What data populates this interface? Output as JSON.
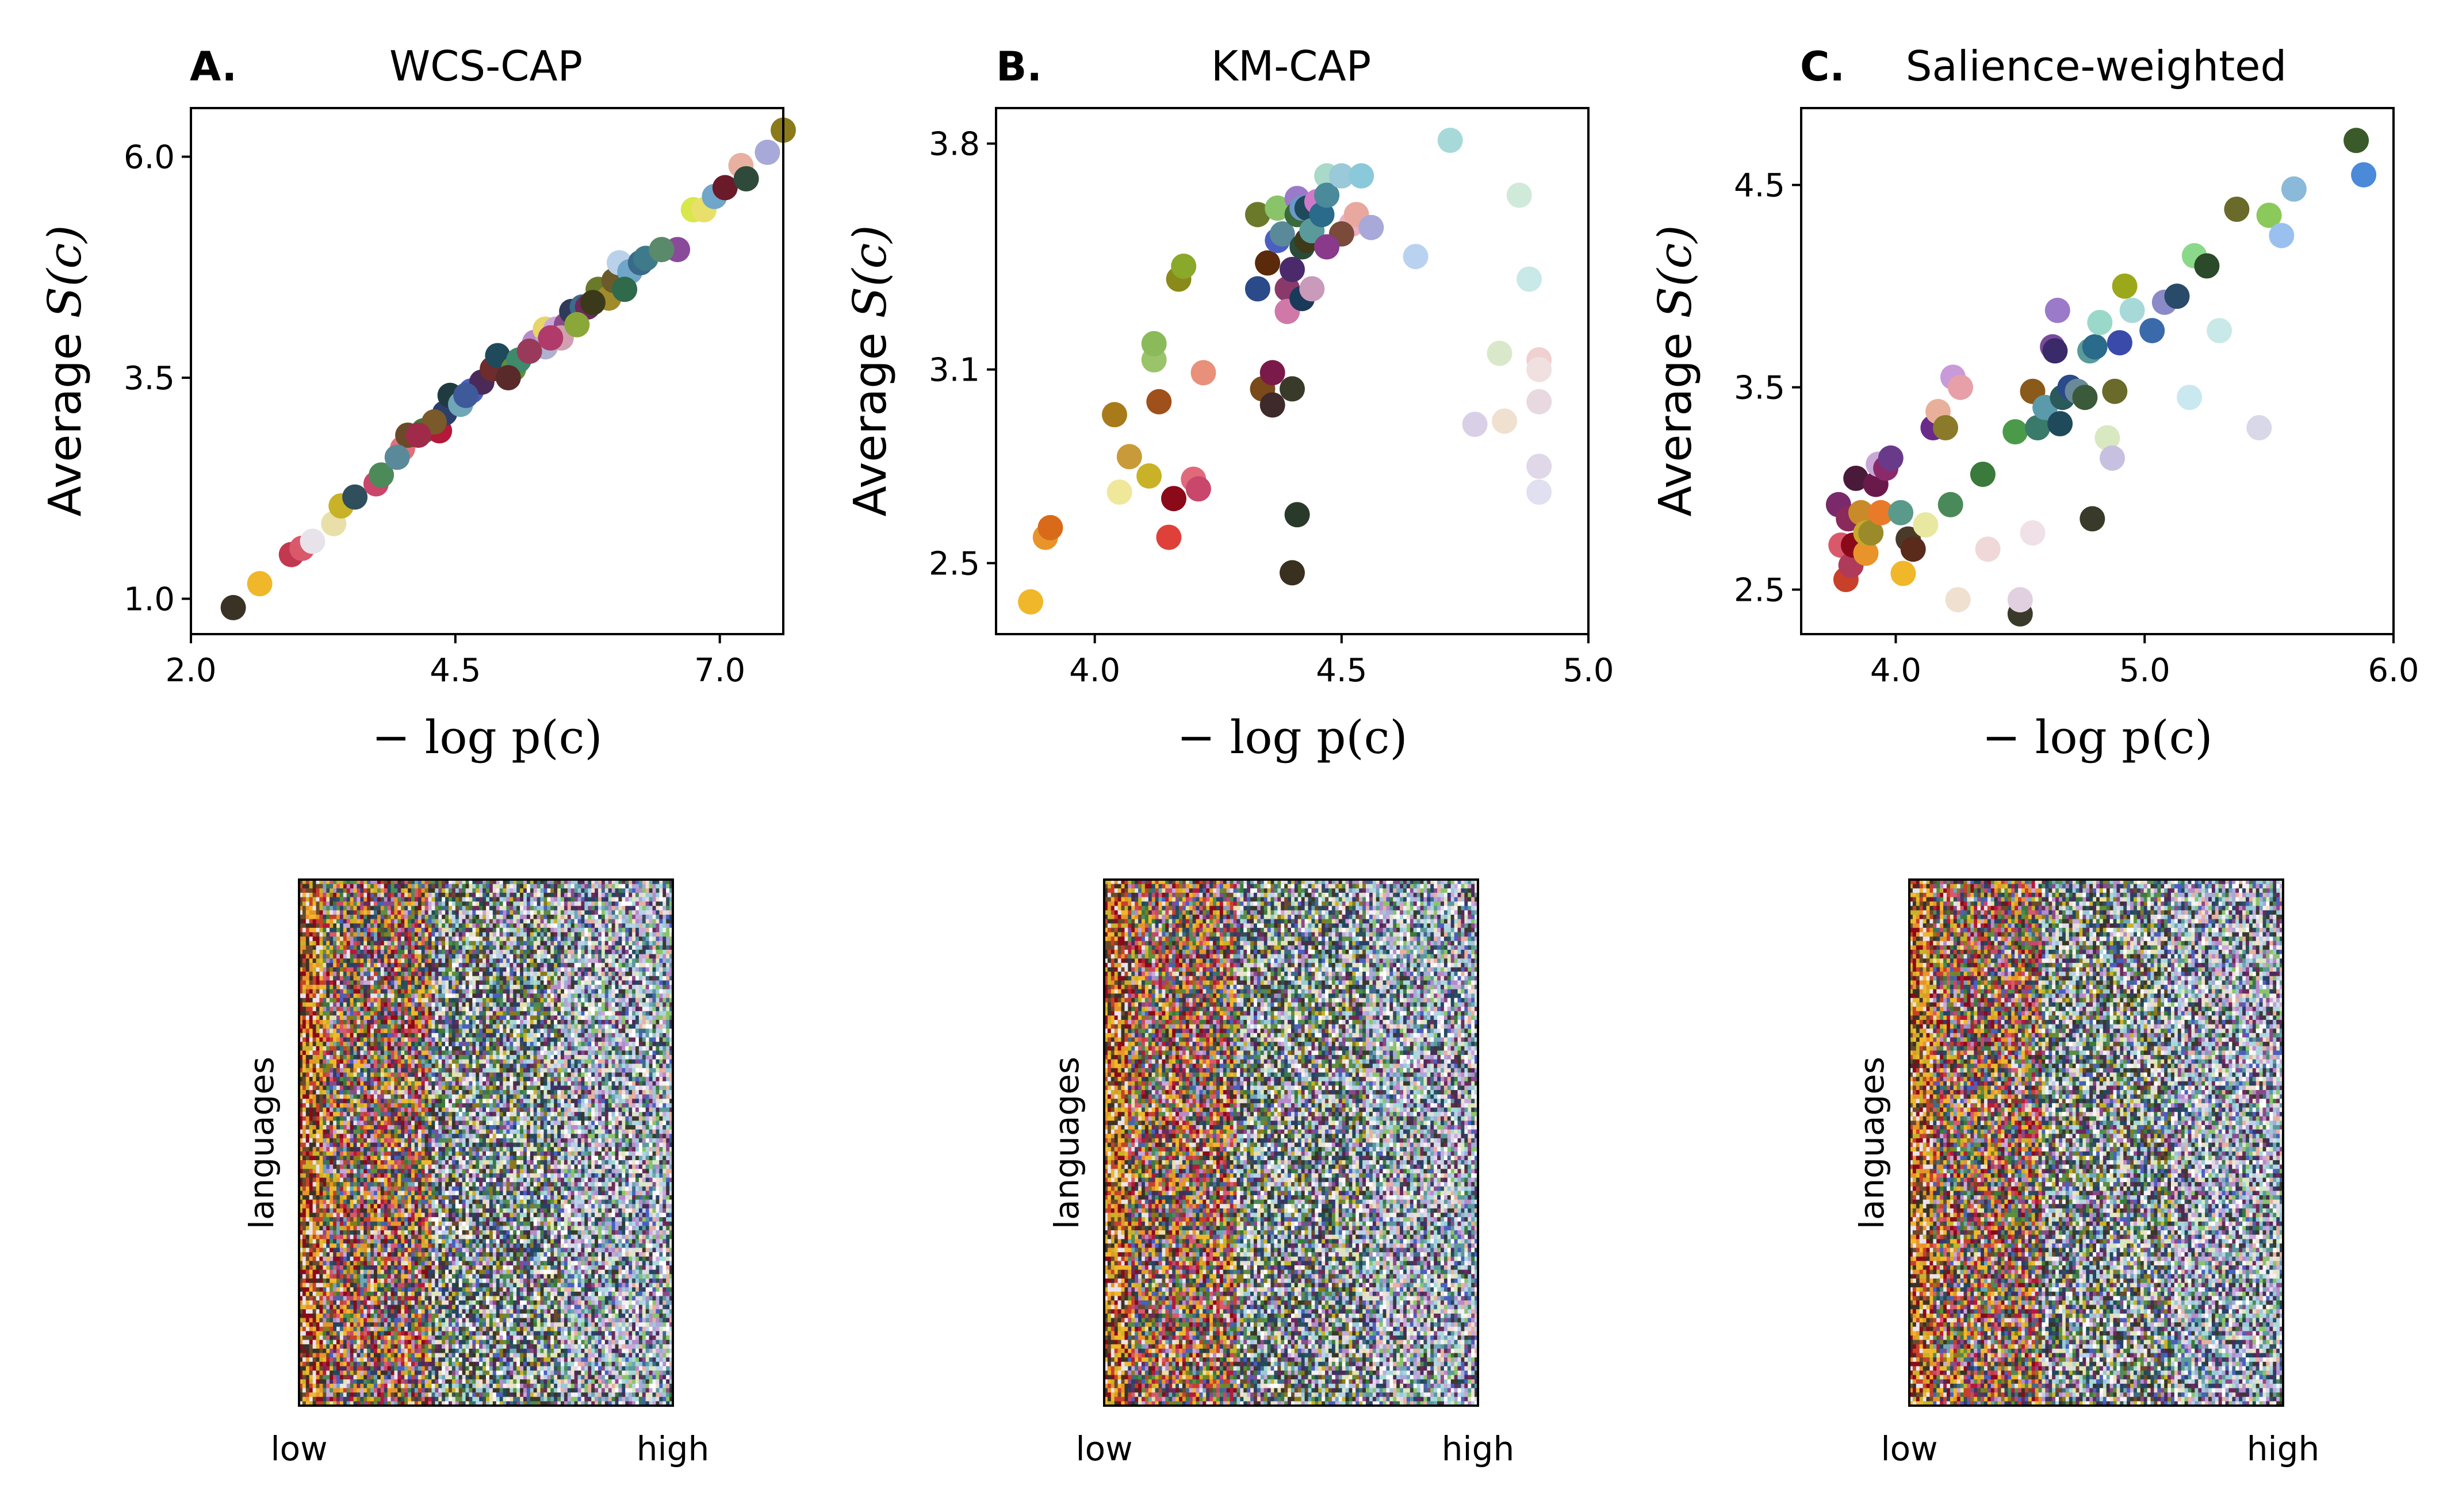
{
  "chart_data": [
    {
      "type": "scatter",
      "panel_letter": "A.",
      "title": "WCS-CAP",
      "xlabel": "− log p(c)",
      "ylabel_prefix": "Average ",
      "ylabel_math": "S(c)",
      "xlim": [
        2.0,
        7.6
      ],
      "ylim": [
        0.6,
        6.55
      ],
      "xticks": [
        "2.0",
        "4.5",
        "7.0"
      ],
      "xtick_values": [
        2.0,
        4.5,
        7.0
      ],
      "yticks": [
        "1.0",
        "3.5",
        "6.0"
      ],
      "ytick_values": [
        1.0,
        3.5,
        6.0
      ],
      "points": [
        [
          2.4,
          0.9,
          "#3b3226"
        ],
        [
          2.65,
          1.17,
          "#f0b72b"
        ],
        [
          2.95,
          1.5,
          "#c2384f"
        ],
        [
          3.05,
          1.57,
          "#d9596b"
        ],
        [
          3.15,
          1.65,
          "#e8e3ea"
        ],
        [
          3.35,
          1.85,
          "#e8e0a8"
        ],
        [
          3.42,
          2.05,
          "#c9b227"
        ],
        [
          3.55,
          2.15,
          "#2f4f5c"
        ],
        [
          3.75,
          2.3,
          "#c8476b"
        ],
        [
          3.8,
          2.4,
          "#4c8a5a"
        ],
        [
          4.0,
          2.7,
          "#e0707a"
        ],
        [
          4.05,
          2.85,
          "#6b4a2a"
        ],
        [
          4.2,
          2.9,
          "#3b7a3a"
        ],
        [
          4.35,
          2.9,
          "#b5193a"
        ],
        [
          4.4,
          3.1,
          "#2c3e6b"
        ],
        [
          4.45,
          3.3,
          "#1f3b40"
        ],
        [
          4.55,
          3.2,
          "#6fa6b8"
        ],
        [
          4.65,
          3.35,
          "#4a5fc1"
        ],
        [
          4.75,
          3.45,
          "#4b2a5a"
        ],
        [
          4.85,
          3.6,
          "#6e2c2c"
        ],
        [
          4.9,
          3.75,
          "#1f4a5c"
        ],
        [
          5.05,
          3.6,
          "#5f8f3a"
        ],
        [
          5.1,
          3.7,
          "#3e8a6a"
        ],
        [
          5.25,
          3.9,
          "#b88ac9"
        ],
        [
          5.35,
          4.05,
          "#e8d56a"
        ],
        [
          5.45,
          4.05,
          "#c9a8d9"
        ],
        [
          5.55,
          4.1,
          "#8a4a8a"
        ],
        [
          5.6,
          4.25,
          "#2f3a5a"
        ],
        [
          5.7,
          4.3,
          "#3e6b8a"
        ],
        [
          5.75,
          4.3,
          "#6b2a5a"
        ],
        [
          5.85,
          4.5,
          "#6b7a2a"
        ],
        [
          5.95,
          4.4,
          "#a08a2a"
        ],
        [
          6.0,
          4.6,
          "#6b5a2a"
        ],
        [
          6.05,
          4.8,
          "#b9d2ea"
        ],
        [
          6.15,
          4.7,
          "#6fa6c9"
        ],
        [
          6.25,
          4.8,
          "#3a6a8a"
        ],
        [
          6.3,
          4.85,
          "#3e7a8a"
        ],
        [
          6.45,
          4.95,
          "#c9a8d9"
        ],
        [
          6.6,
          4.95,
          "#8a4a9a"
        ],
        [
          6.75,
          5.4,
          "#d8e84a"
        ],
        [
          6.85,
          5.4,
          "#e8e06a"
        ],
        [
          6.95,
          5.55,
          "#6fa6c9"
        ],
        [
          7.05,
          5.65,
          "#6b1a2a"
        ],
        [
          7.2,
          5.9,
          "#e8b0a0"
        ],
        [
          7.25,
          5.75,
          "#2f4a3a"
        ],
        [
          7.45,
          6.05,
          "#a8a8d9"
        ],
        [
          7.6,
          6.3,
          "#8a7a1a"
        ],
        [
          5.35,
          3.85,
          "#b0b0d0"
        ],
        [
          5.5,
          3.95,
          "#d0a0b0"
        ],
        [
          5.2,
          3.8,
          "#9a3a5a"
        ],
        [
          5.8,
          4.35,
          "#3a3a1a"
        ],
        [
          6.45,
          4.95,
          "#5a8a6a"
        ],
        [
          5.0,
          3.5,
          "#5a2a2a"
        ],
        [
          4.6,
          3.3,
          "#3e5a9a"
        ],
        [
          4.3,
          3.0,
          "#7a5a2a"
        ],
        [
          3.95,
          2.6,
          "#5a8a9a"
        ],
        [
          6.1,
          4.5,
          "#2f6a4a"
        ],
        [
          5.65,
          4.1,
          "#8aa83a"
        ],
        [
          4.15,
          2.85,
          "#a02a4a"
        ],
        [
          5.4,
          3.95,
          "#b03a6a"
        ]
      ]
    },
    {
      "type": "scatter",
      "panel_letter": "B.",
      "title": "KM-CAP",
      "xlabel": "− log p(c)",
      "ylabel_prefix": "Average ",
      "ylabel_math": "S(c)",
      "xlim": [
        3.8,
        5.0
      ],
      "ylim": [
        2.28,
        3.91
      ],
      "xticks": [
        "4.0",
        "4.5",
        "5.0"
      ],
      "xtick_values": [
        4.0,
        4.5,
        5.0
      ],
      "yticks": [
        "2.5",
        "3.1",
        "3.8"
      ],
      "ytick_values": [
        2.5,
        3.1,
        3.8
      ],
      "points": [
        [
          3.87,
          2.38,
          "#f0b72b"
        ],
        [
          3.9,
          2.58,
          "#e8942a"
        ],
        [
          3.91,
          2.61,
          "#d96a1a"
        ],
        [
          4.04,
          2.96,
          "#a87a1a"
        ],
        [
          4.05,
          2.72,
          "#efe79a"
        ],
        [
          4.07,
          2.83,
          "#c99a3a"
        ],
        [
          4.11,
          2.77,
          "#c9b227"
        ],
        [
          4.12,
          3.13,
          "#9ac46a"
        ],
        [
          4.12,
          3.18,
          "#8aba5a"
        ],
        [
          4.13,
          3.0,
          "#a0501a"
        ],
        [
          4.15,
          2.58,
          "#e0403a"
        ],
        [
          4.16,
          2.7,
          "#8a0a1a"
        ],
        [
          4.17,
          3.38,
          "#8a8a1a"
        ],
        [
          4.18,
          3.42,
          "#8aa82a"
        ],
        [
          4.2,
          2.76,
          "#e06a7a"
        ],
        [
          4.21,
          2.73,
          "#c8476b"
        ],
        [
          4.22,
          3.09,
          "#e8907a"
        ],
        [
          4.33,
          3.58,
          "#6b7a2a"
        ],
        [
          4.33,
          3.35,
          "#2a4a8a"
        ],
        [
          4.34,
          3.04,
          "#7a4a1a"
        ],
        [
          4.35,
          3.43,
          "#5a2a0a"
        ],
        [
          4.36,
          3.09,
          "#7a1a4a"
        ],
        [
          4.36,
          2.99,
          "#3e2a2a"
        ],
        [
          4.37,
          3.6,
          "#8ac46a"
        ],
        [
          4.37,
          3.5,
          "#4a5fc1"
        ],
        [
          4.38,
          3.52,
          "#5a8a9a"
        ],
        [
          4.39,
          3.35,
          "#8a3a6a"
        ],
        [
          4.39,
          3.28,
          "#d079a9"
        ],
        [
          4.4,
          3.41,
          "#4a2a6a"
        ],
        [
          4.4,
          3.04,
          "#3a3a2a"
        ],
        [
          4.4,
          2.47,
          "#3a3020"
        ],
        [
          4.41,
          3.63,
          "#9a7ac9"
        ],
        [
          4.41,
          3.58,
          "#3a6a3a"
        ],
        [
          4.41,
          2.65,
          "#2a3a2a"
        ],
        [
          4.42,
          3.32,
          "#1a3a5a"
        ],
        [
          4.42,
          3.48,
          "#2a4a3a"
        ],
        [
          4.42,
          3.6,
          "#6a9ac9"
        ],
        [
          4.43,
          3.6,
          "#1f4a5c"
        ],
        [
          4.43,
          3.5,
          "#3e3a1a"
        ],
        [
          4.44,
          3.35,
          "#c99ab9"
        ],
        [
          4.44,
          3.53,
          "#5a9a9a"
        ],
        [
          4.45,
          3.62,
          "#d079c9"
        ],
        [
          4.46,
          3.58,
          "#2a6a8a"
        ],
        [
          4.47,
          3.7,
          "#a8d9c9"
        ],
        [
          4.47,
          3.64,
          "#4a8a9a"
        ],
        [
          4.5,
          3.7,
          "#9ac9d9"
        ],
        [
          4.52,
          3.55,
          "#e8b0c0"
        ],
        [
          4.53,
          3.58,
          "#e8a8a0"
        ],
        [
          4.54,
          3.7,
          "#8ac9d9"
        ],
        [
          4.56,
          3.54,
          "#a8a8d9"
        ],
        [
          4.65,
          3.45,
          "#b9d2f0"
        ],
        [
          4.72,
          3.81,
          "#a8d9d9"
        ],
        [
          4.77,
          2.93,
          "#d9d0e8"
        ],
        [
          4.82,
          3.15,
          "#d9e8c9"
        ],
        [
          4.83,
          2.94,
          "#f0e0d0"
        ],
        [
          4.86,
          3.64,
          "#d0ead9"
        ],
        [
          4.88,
          3.38,
          "#c9e8e8"
        ],
        [
          4.9,
          3.13,
          "#f0d0d0"
        ],
        [
          4.9,
          3.1,
          "#f0e0e0"
        ],
        [
          4.9,
          3.0,
          "#e8d8e0"
        ],
        [
          4.9,
          2.8,
          "#e0d8e8"
        ],
        [
          4.9,
          2.72,
          "#e0e0f0"
        ],
        [
          4.5,
          3.52,
          "#7a4a3a"
        ],
        [
          4.47,
          3.48,
          "#8a3a8a"
        ]
      ]
    },
    {
      "type": "scatter",
      "panel_letter": "C.",
      "title": "Salience-weighted",
      "xlabel": "− log p(c)",
      "ylabel_prefix": "Average ",
      "ylabel_math": "S(c)",
      "xlim": [
        3.62,
        6.0
      ],
      "ylim": [
        2.28,
        4.88
      ],
      "xticks": [
        "4.0",
        "5.0",
        "6.0"
      ],
      "xtick_values": [
        4.0,
        5.0,
        6.0
      ],
      "yticks": [
        "2.5",
        "3.5",
        "4.5"
      ],
      "ytick_values": [
        2.5,
        3.5,
        4.5
      ],
      "points": [
        [
          3.77,
          2.92,
          "#7a2a6a"
        ],
        [
          3.78,
          2.72,
          "#d9596b"
        ],
        [
          3.8,
          2.55,
          "#c8402a"
        ],
        [
          3.81,
          2.85,
          "#8a2a5a"
        ],
        [
          3.82,
          2.62,
          "#b03a5a"
        ],
        [
          3.83,
          2.72,
          "#8a0a1a"
        ],
        [
          3.84,
          3.05,
          "#4a1a3a"
        ],
        [
          3.86,
          2.88,
          "#c98a2a"
        ],
        [
          3.88,
          2.68,
          "#e8942a"
        ],
        [
          3.88,
          2.78,
          "#c9a82a"
        ],
        [
          3.9,
          2.78,
          "#9a8a2a"
        ],
        [
          3.92,
          3.02,
          "#6a1a4a"
        ],
        [
          3.93,
          3.12,
          "#c9a8d9"
        ],
        [
          3.94,
          2.88,
          "#e87a2a"
        ],
        [
          3.96,
          3.1,
          "#8a2a6a"
        ],
        [
          3.98,
          3.15,
          "#6a3a8a"
        ],
        [
          4.02,
          2.88,
          "#5a9a8a"
        ],
        [
          4.03,
          2.58,
          "#f0b72b"
        ],
        [
          4.05,
          2.75,
          "#4a3a2a"
        ],
        [
          4.07,
          2.7,
          "#5a2a1a"
        ],
        [
          4.12,
          2.82,
          "#e8e8a0"
        ],
        [
          4.15,
          3.3,
          "#6a2a8a"
        ],
        [
          4.17,
          3.38,
          "#e8b09a"
        ],
        [
          4.2,
          3.3,
          "#8a7a2a"
        ],
        [
          4.22,
          2.92,
          "#4a8a5a"
        ],
        [
          4.23,
          3.55,
          "#c99ad9"
        ],
        [
          4.25,
          2.45,
          "#f0e0d0"
        ],
        [
          4.26,
          3.5,
          "#e8a0a8"
        ],
        [
          4.35,
          3.07,
          "#3a7a3a"
        ],
        [
          4.37,
          2.7,
          "#f0d8d8"
        ],
        [
          4.48,
          3.28,
          "#4a9a4a"
        ],
        [
          4.5,
          2.38,
          "#3a3a2a"
        ],
        [
          4.5,
          2.45,
          "#e0d0e0"
        ],
        [
          4.55,
          3.48,
          "#8a5a1a"
        ],
        [
          4.55,
          2.78,
          "#f0e0e8"
        ],
        [
          4.57,
          3.3,
          "#3a7a6a"
        ],
        [
          4.6,
          3.4,
          "#5a9aaa"
        ],
        [
          4.63,
          3.7,
          "#7a4a9a"
        ],
        [
          4.64,
          3.68,
          "#3a2a6a"
        ],
        [
          4.65,
          3.88,
          "#9a7ac9"
        ],
        [
          4.66,
          3.32,
          "#1f4a5c"
        ],
        [
          4.67,
          3.45,
          "#2a5a5a"
        ],
        [
          4.7,
          3.5,
          "#2a4a8a"
        ],
        [
          4.73,
          3.48,
          "#6a8a9a"
        ],
        [
          4.76,
          3.45,
          "#3a5a3a"
        ],
        [
          4.78,
          3.68,
          "#5a9a9a"
        ],
        [
          4.79,
          2.85,
          "#3a3a2a"
        ],
        [
          4.8,
          3.7,
          "#2a6a8a"
        ],
        [
          4.82,
          3.82,
          "#9ad9c9"
        ],
        [
          4.85,
          3.25,
          "#d8e8c0"
        ],
        [
          4.87,
          3.15,
          "#c8c0e0"
        ],
        [
          4.88,
          3.48,
          "#6a6a2a"
        ],
        [
          4.9,
          3.72,
          "#3a4aaa"
        ],
        [
          4.92,
          4.0,
          "#9aa81a"
        ],
        [
          4.95,
          3.88,
          "#a8d9d9"
        ],
        [
          5.03,
          3.78,
          "#3a6aaa"
        ],
        [
          5.08,
          3.92,
          "#8a8ac9"
        ],
        [
          5.13,
          3.95,
          "#2a4a6a"
        ],
        [
          5.18,
          3.45,
          "#c9e8f0"
        ],
        [
          5.2,
          4.15,
          "#8ad98a"
        ],
        [
          5.25,
          4.1,
          "#2a4a2a"
        ],
        [
          5.3,
          3.78,
          "#c9e8e8"
        ],
        [
          5.37,
          4.38,
          "#6a6a2a"
        ],
        [
          5.46,
          3.3,
          "#d8d8e8"
        ],
        [
          5.5,
          4.35,
          "#8ac95a"
        ],
        [
          5.55,
          4.25,
          "#9ac0f0"
        ],
        [
          5.6,
          4.48,
          "#8ab9d9"
        ],
        [
          5.85,
          4.72,
          "#3a5a2a"
        ],
        [
          5.88,
          4.55,
          "#4a8ad9"
        ]
      ]
    }
  ],
  "matrices": [
    {
      "ylabel": "languages",
      "xlow": "low",
      "xhigh": "high"
    },
    {
      "ylabel": "languages",
      "xlow": "low",
      "xhigh": "high"
    },
    {
      "ylabel": "languages",
      "xlow": "low",
      "xhigh": "high"
    }
  ]
}
